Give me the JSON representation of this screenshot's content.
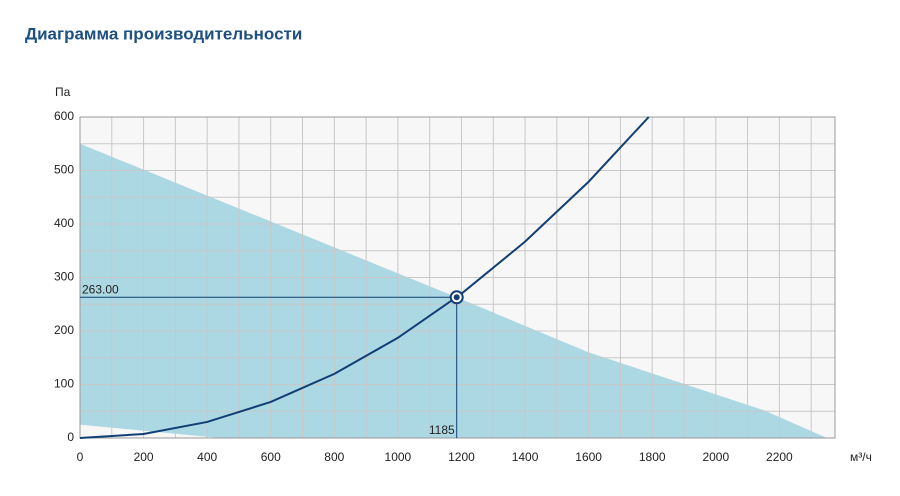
{
  "chart_data": {
    "type": "line",
    "title": "Диаграмма производительности",
    "y_label": "Па",
    "x_label": "м³/ч",
    "xlim": [
      0,
      2375
    ],
    "ylim": [
      0,
      600
    ],
    "xticks": [
      0,
      200,
      400,
      600,
      800,
      1000,
      1200,
      1400,
      1600,
      1800,
      2000,
      2200
    ],
    "yticks": [
      0,
      100,
      200,
      300,
      400,
      500,
      600
    ],
    "grid": true,
    "area": {
      "name": null,
      "color": "#acd8e4",
      "x": [
        0,
        1185,
        1600,
        2150,
        2350,
        440,
        0
      ],
      "y": [
        550,
        263,
        160,
        52,
        0,
        0,
        25
      ]
    },
    "series": [
      {
        "name": null,
        "color": "#123f73",
        "x": [
          0,
          200,
          400,
          600,
          800,
          1000,
          1200,
          1400,
          1600,
          1800
        ],
        "values": [
          0,
          7.5,
          30,
          67.4,
          119.9,
          187.3,
          269.7,
          367,
          479,
          607
        ]
      }
    ],
    "operating_point": {
      "x": 1185,
      "y": 263,
      "value_labels": [
        "1185",
        "263.00"
      ]
    }
  }
}
